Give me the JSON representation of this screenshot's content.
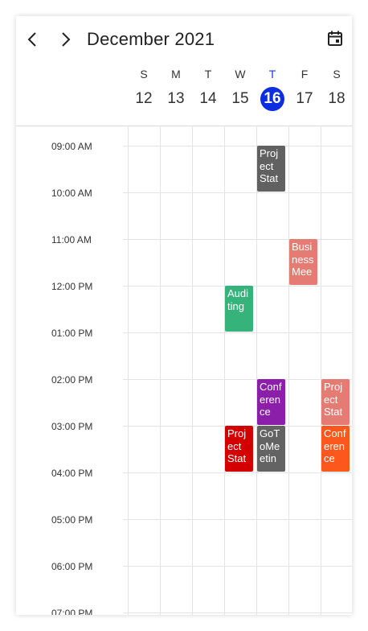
{
  "header": {
    "title": "December 2021",
    "prev_icon": "chevron-left-icon",
    "next_icon": "chevron-right-icon",
    "calendar_icon": "calendar-icon"
  },
  "days": [
    {
      "name": "S",
      "date": "12",
      "today": false
    },
    {
      "name": "M",
      "date": "13",
      "today": false
    },
    {
      "name": "T",
      "date": "14",
      "today": false
    },
    {
      "name": "W",
      "date": "15",
      "today": false
    },
    {
      "name": "T",
      "date": "16",
      "today": true
    },
    {
      "name": "F",
      "date": "17",
      "today": false
    },
    {
      "name": "S",
      "date": "18",
      "today": false
    }
  ],
  "times": [
    "09:00 AM",
    "10:00 AM",
    "11:00 AM",
    "12:00 PM",
    "01:00 PM",
    "02:00 PM",
    "03:00 PM",
    "04:00 PM",
    "05:00 PM",
    "06:00 PM",
    "07:00 PM"
  ],
  "appointments": [
    {
      "title": "Project Stat",
      "day": 4,
      "start": 9.0,
      "end": 10.0,
      "color": "#616161"
    },
    {
      "title": "Business Mee",
      "day": 5,
      "start": 11.0,
      "end": 12.0,
      "color": "#e47c73"
    },
    {
      "title": "Auditing",
      "day": 3,
      "start": 12.0,
      "end": 13.0,
      "color": "#36b37b"
    },
    {
      "title": "Conference",
      "day": 4,
      "start": 14.0,
      "end": 15.0,
      "color": "#8b1fa9"
    },
    {
      "title": "Project Stat",
      "day": 6,
      "start": 14.0,
      "end": 15.0,
      "color": "#e47c73"
    },
    {
      "title": "Project Stat",
      "day": 3,
      "start": 15.0,
      "end": 16.0,
      "color": "#d20100"
    },
    {
      "title": "GoToMeetin",
      "day": 4,
      "start": 15.0,
      "end": 16.0,
      "color": "#636363"
    },
    {
      "title": "Conference",
      "day": 6,
      "start": 15.0,
      "end": 16.0,
      "color": "#fc571d"
    }
  ],
  "current_time": {
    "day": 4,
    "hour": 19.12
  }
}
